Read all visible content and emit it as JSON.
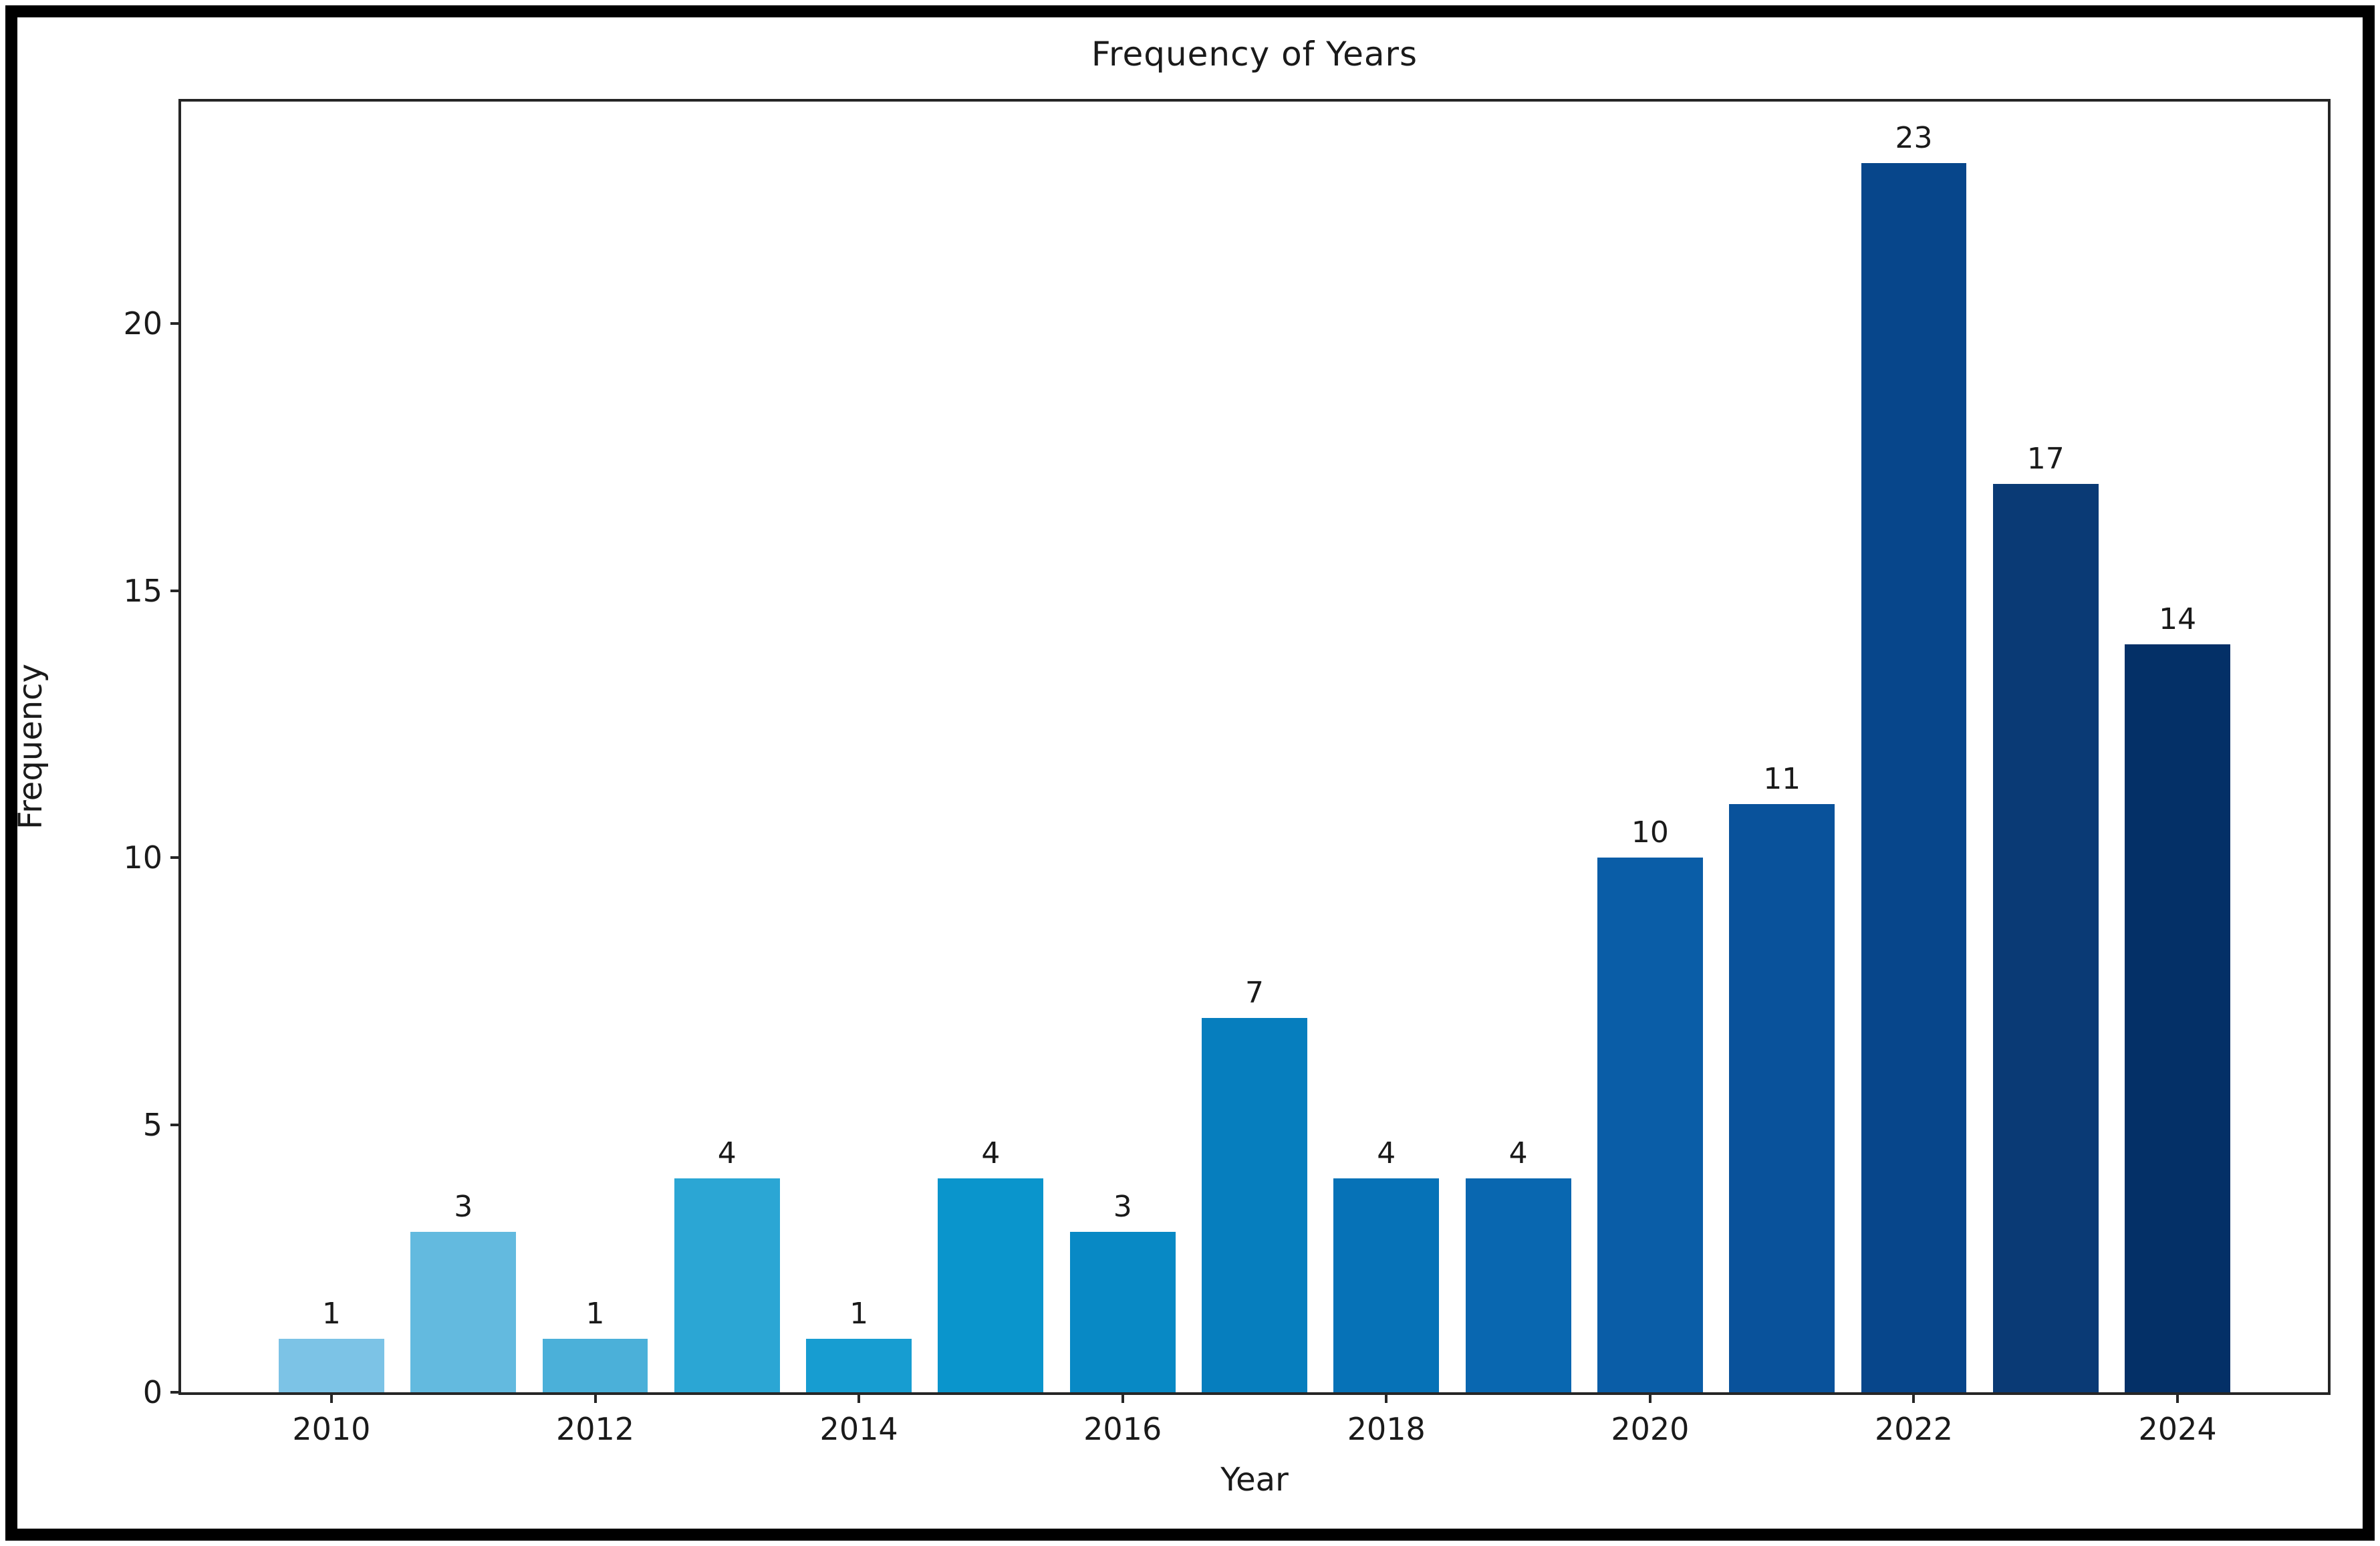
{
  "figure": {
    "title": "Frequency of Years",
    "xlabel": "Year",
    "ylabel": "Frequency"
  },
  "chart_data": {
    "type": "bar",
    "title": "Frequency of Years",
    "xlabel": "Year",
    "ylabel": "Frequency",
    "categories": [
      "2010",
      "2011",
      "2012",
      "2013",
      "2014",
      "2015",
      "2016",
      "2017",
      "2018",
      "2019",
      "2020",
      "2021",
      "2022",
      "2023",
      "2024"
    ],
    "values": [
      1,
      3,
      1,
      4,
      1,
      4,
      3,
      7,
      4,
      4,
      10,
      11,
      23,
      17,
      14
    ],
    "bar_labels": [
      "1",
      "3",
      "1",
      "4",
      "1",
      "4",
      "3",
      "7",
      "4",
      "4",
      "10",
      "11",
      "23",
      "17",
      "14"
    ],
    "bar_colors": [
      "#7cc3e6",
      "#63badf",
      "#4bb0d9",
      "#2ba6d4",
      "#179dd1",
      "#0a95cc",
      "#0889c5",
      "#067ebe",
      "#0672b7",
      "#0967b0",
      "#0a5da7",
      "#09529b",
      "#07468b",
      "#0a3a75",
      "#043067"
    ],
    "ylim": [
      0,
      24.15
    ],
    "yticks": [
      0,
      5,
      10,
      15,
      20
    ],
    "ytick_labels": [
      "0",
      "5",
      "10",
      "15",
      "20"
    ],
    "xtick_indices": [
      0,
      2,
      4,
      6,
      8,
      10,
      12,
      14
    ],
    "xtick_labels": [
      "2010",
      "2012",
      "2014",
      "2016",
      "2018",
      "2020",
      "2022",
      "2024"
    ],
    "bar_width_fraction": 0.8,
    "x_edge_margin_units": 1.14,
    "grid": false,
    "legend": "none",
    "spine_color": "#262626",
    "text_color": "#1a1a1a",
    "background_color": "#ffffff",
    "outer_border_color": "#000000"
  }
}
